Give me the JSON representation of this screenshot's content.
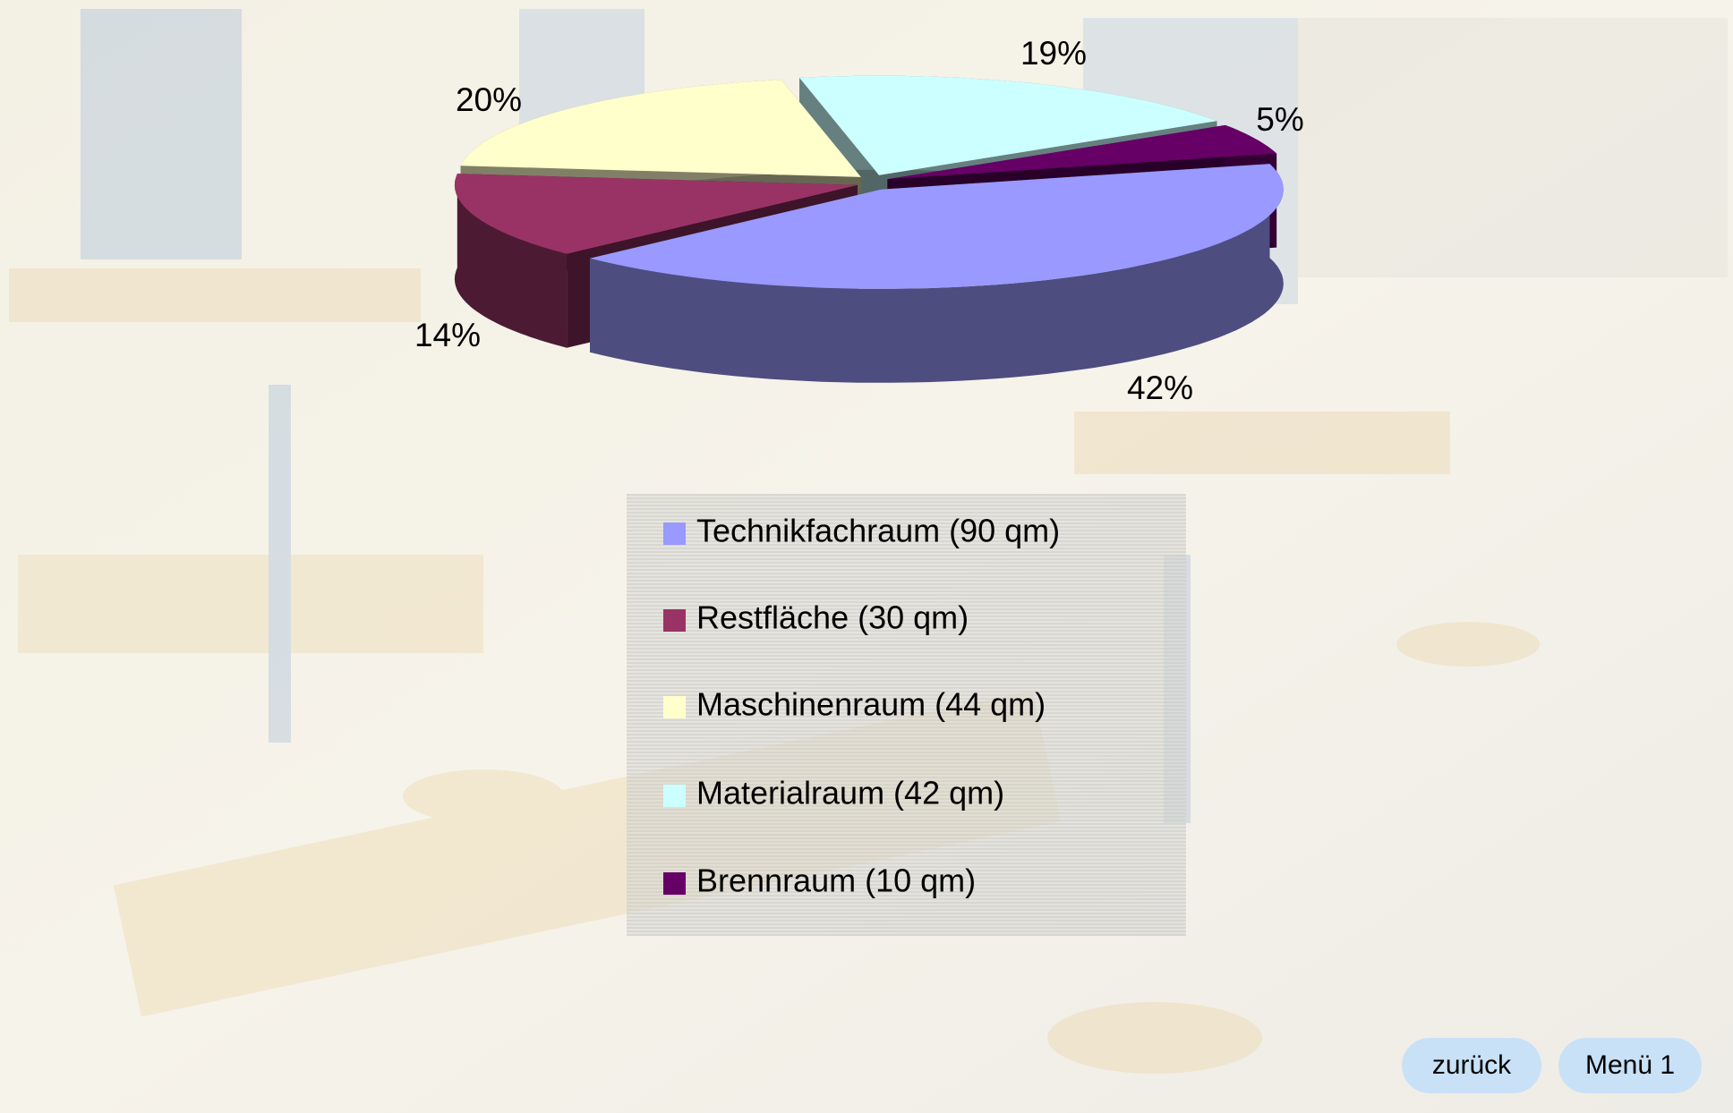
{
  "chart_data": {
    "type": "pie",
    "categories": [
      "Technikfachraum (90 qm)",
      "Restfläche (30 qm)",
      "Maschinenraum (44 qm)",
      "Materialraum (42 qm)",
      "Brennraum (10 qm)"
    ],
    "values": [
      42,
      14,
      20,
      19,
      5
    ],
    "value_labels": [
      "42%",
      "14%",
      "20%",
      "19%",
      "5%"
    ],
    "colors": [
      "#9999ff",
      "#993366",
      "#ffffcc",
      "#ccffff",
      "#660066"
    ],
    "legend": "bottom"
  },
  "buttons": [
    "zurück",
    "Menü 1"
  ]
}
